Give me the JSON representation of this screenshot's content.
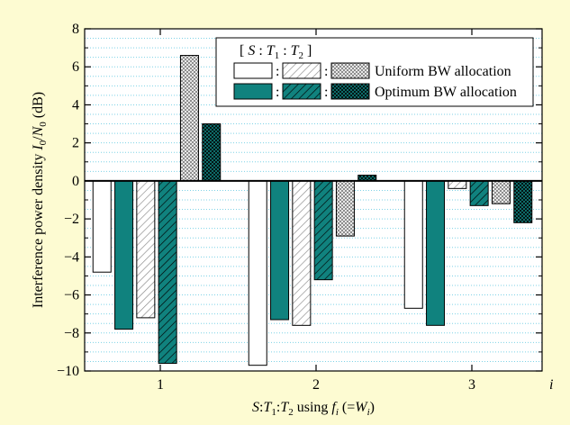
{
  "chart_data": {
    "type": "bar",
    "categories": [
      "1",
      "2",
      "3"
    ],
    "category_axis_end_label": "i",
    "xlabel_parts": [
      "S",
      ":",
      "T",
      "1",
      ":",
      "T",
      "2",
      " using ",
      "f",
      "i",
      " (=",
      "W",
      "i",
      ")"
    ],
    "ylabel_parts": [
      "Interference power density ",
      "I",
      "0",
      "/",
      "N",
      "0",
      " (dB)"
    ],
    "ylim": [
      -10,
      8
    ],
    "yticks": [
      -10,
      -8,
      -6,
      -4,
      -2,
      0,
      2,
      4,
      6,
      8
    ],
    "ytick_labels": [
      "−10",
      "−8",
      "−6",
      "−4",
      "−2",
      "0",
      "2",
      "4",
      "6",
      "8"
    ],
    "grid": "horizontal dotted",
    "legend_position": "top-right",
    "colors": {
      "background": "#fdfbd2",
      "plot_background": "#ffffff",
      "grid": "#7fd2e6",
      "teal": "#10827e",
      "white": "#ffffff",
      "hatch_line": "#888888"
    },
    "series": [
      {
        "key": "uniform_S",
        "fill": "white",
        "group": "Uniform BW allocation",
        "component": "S",
        "values": [
          -4.8,
          -9.7,
          -6.7
        ]
      },
      {
        "key": "optimum_S",
        "fill": "teal",
        "group": "Optimum BW allocation",
        "component": "S",
        "values": [
          -7.8,
          -7.3,
          -7.6
        ]
      },
      {
        "key": "uniform_T1",
        "fill": "white-diag",
        "group": "Uniform BW allocation",
        "component": "T1",
        "values": [
          -7.2,
          -7.6,
          -0.4
        ]
      },
      {
        "key": "optimum_T1",
        "fill": "teal-diag",
        "group": "Optimum BW allocation",
        "component": "T1",
        "values": [
          -9.6,
          -5.2,
          -1.3
        ]
      },
      {
        "key": "uniform_T2",
        "fill": "white-cross",
        "group": "Uniform BW allocation",
        "component": "T2",
        "values": [
          6.6,
          -2.9,
          -1.2
        ]
      },
      {
        "key": "optimum_T2",
        "fill": "teal-cross",
        "group": "Optimum BW allocation",
        "component": "T2",
        "values": [
          3.0,
          0.3,
          -2.2
        ]
      }
    ],
    "legend": {
      "header_parts": [
        "[ ",
        "S",
        " : ",
        "T",
        "1",
        " : ",
        "T",
        "2",
        " ]"
      ],
      "separator": ":",
      "rows": [
        {
          "label": "Uniform BW allocation",
          "fills": [
            "white",
            "white-diag",
            "white-cross"
          ]
        },
        {
          "label": "Optimum BW allocation",
          "fills": [
            "teal",
            "teal-diag",
            "teal-cross"
          ]
        }
      ]
    }
  }
}
